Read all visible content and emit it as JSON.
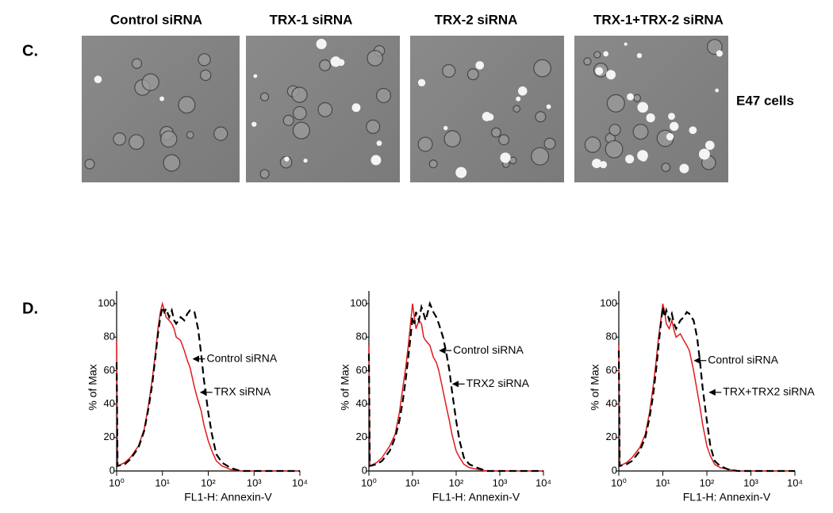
{
  "panel_c": {
    "label": "C.",
    "image_titles": [
      "Control siRNA",
      "TRX-1 siRNA",
      "TRX-2 siRNA",
      "TRX-1+TRX-2 siRNA"
    ],
    "cell_line": "E47 cells"
  },
  "panel_d_label": "D.",
  "chart_data": [
    {
      "type": "line",
      "xscale": "log",
      "xlabel": "FL1-H: Annexin-V",
      "ylabel": "% of Max",
      "xlim": [
        1,
        10000
      ],
      "xticks": [
        {
          "value": 1,
          "label": "10⁰"
        },
        {
          "value": 10,
          "label": "10¹"
        },
        {
          "value": 100,
          "label": "10²"
        },
        {
          "value": 1000,
          "label": "10³"
        },
        {
          "value": 10000,
          "label": "10⁴"
        }
      ],
      "ylim": [
        0,
        100
      ],
      "yticks": [
        0,
        20,
        40,
        60,
        80,
        100
      ],
      "x": [
        1,
        1.05,
        1.5,
        2,
        3,
        4,
        5,
        6,
        7,
        8,
        9,
        10,
        11,
        12,
        14,
        16,
        18,
        20,
        25,
        30,
        35,
        40,
        50,
        60,
        70,
        80,
        100,
        120,
        150,
        200,
        300,
        500,
        1000,
        10000
      ],
      "series": [
        {
          "name": "Control siRNA",
          "color": "#e31a1c",
          "line_style": "solid",
          "values": [
            78,
            3,
            5,
            8,
            15,
            25,
            40,
            55,
            70,
            85,
            95,
            100,
            96,
            92,
            90,
            88,
            85,
            80,
            78,
            72,
            66,
            62,
            50,
            42,
            36,
            28,
            18,
            12,
            6,
            3,
            1,
            0,
            0,
            0
          ]
        },
        {
          "name": "TRX siRNA",
          "color": "#000000",
          "line_style": "dashed",
          "values": [
            65,
            3,
            4,
            7,
            14,
            24,
            38,
            52,
            68,
            82,
            92,
            98,
            95,
            97,
            92,
            96,
            90,
            88,
            92,
            90,
            94,
            96,
            95,
            85,
            70,
            55,
            35,
            22,
            10,
            5,
            2,
            0,
            0,
            0
          ]
        }
      ]
    },
    {
      "type": "line",
      "xscale": "log",
      "xlabel": "FL1-H: Annexin-V",
      "ylabel": "% of Max",
      "xlim": [
        1,
        10000
      ],
      "xticks": [
        {
          "value": 1,
          "label": "10⁰"
        },
        {
          "value": 10,
          "label": "10¹"
        },
        {
          "value": 100,
          "label": "10²"
        },
        {
          "value": 1000,
          "label": "10³"
        },
        {
          "value": 10000,
          "label": "10⁴"
        }
      ],
      "ylim": [
        0,
        100
      ],
      "yticks": [
        0,
        20,
        40,
        60,
        80,
        100
      ],
      "x": [
        1,
        1.05,
        1.5,
        2,
        3,
        4,
        5,
        6,
        7,
        8,
        9,
        10,
        11,
        12,
        14,
        16,
        18,
        20,
        25,
        30,
        35,
        40,
        50,
        60,
        70,
        80,
        100,
        120,
        150,
        200,
        300,
        500,
        1000,
        10000
      ],
      "series": [
        {
          "name": "Control siRNA",
          "color": "#e31a1c",
          "line_style": "solid",
          "values": [
            75,
            3,
            5,
            8,
            15,
            22,
            35,
            50,
            62,
            75,
            88,
            100,
            92,
            85,
            90,
            88,
            80,
            78,
            75,
            68,
            65,
            60,
            48,
            38,
            30,
            22,
            12,
            8,
            4,
            2,
            1,
            0,
            0,
            0
          ]
        },
        {
          "name": "TRX2 siRNA",
          "color": "#000000",
          "line_style": "dashed",
          "values": [
            70,
            3,
            4,
            6,
            12,
            20,
            30,
            42,
            55,
            68,
            80,
            92,
            88,
            95,
            90,
            98,
            94,
            90,
            100,
            95,
            92,
            88,
            80,
            70,
            60,
            48,
            30,
            18,
            8,
            4,
            2,
            0,
            0,
            0
          ]
        }
      ]
    },
    {
      "type": "line",
      "xscale": "log",
      "xlabel": "FL1-H: Annexin-V",
      "ylabel": "% of Max",
      "xlim": [
        1,
        10000
      ],
      "xticks": [
        {
          "value": 1,
          "label": "10⁰"
        },
        {
          "value": 10,
          "label": "10¹"
        },
        {
          "value": 100,
          "label": "10²"
        },
        {
          "value": 1000,
          "label": "10³"
        },
        {
          "value": 10000,
          "label": "10⁴"
        }
      ],
      "ylim": [
        0,
        100
      ],
      "yticks": [
        0,
        20,
        40,
        60,
        80,
        100
      ],
      "x": [
        1,
        1.05,
        1.5,
        2,
        3,
        4,
        5,
        6,
        7,
        8,
        9,
        10,
        11,
        12,
        14,
        16,
        18,
        20,
        25,
        30,
        35,
        40,
        50,
        60,
        70,
        80,
        100,
        120,
        150,
        200,
        300,
        500,
        1000,
        10000
      ],
      "series": [
        {
          "name": "Control siRNA",
          "color": "#e31a1c",
          "line_style": "solid",
          "values": [
            75,
            3,
            5,
            8,
            14,
            22,
            35,
            50,
            65,
            80,
            90,
            100,
            95,
            88,
            85,
            90,
            84,
            80,
            82,
            78,
            75,
            72,
            60,
            48,
            38,
            28,
            15,
            9,
            4,
            2,
            1,
            0,
            0,
            0
          ]
        },
        {
          "name": "TRX+TRX2 siRNA",
          "color": "#000000",
          "line_style": "dashed",
          "values": [
            72,
            3,
            4,
            6,
            12,
            20,
            32,
            45,
            60,
            75,
            88,
            98,
            92,
            96,
            90,
            94,
            88,
            85,
            90,
            92,
            95,
            94,
            90,
            80,
            65,
            50,
            30,
            15,
            6,
            3,
            1,
            0,
            0,
            0
          ]
        }
      ]
    }
  ]
}
